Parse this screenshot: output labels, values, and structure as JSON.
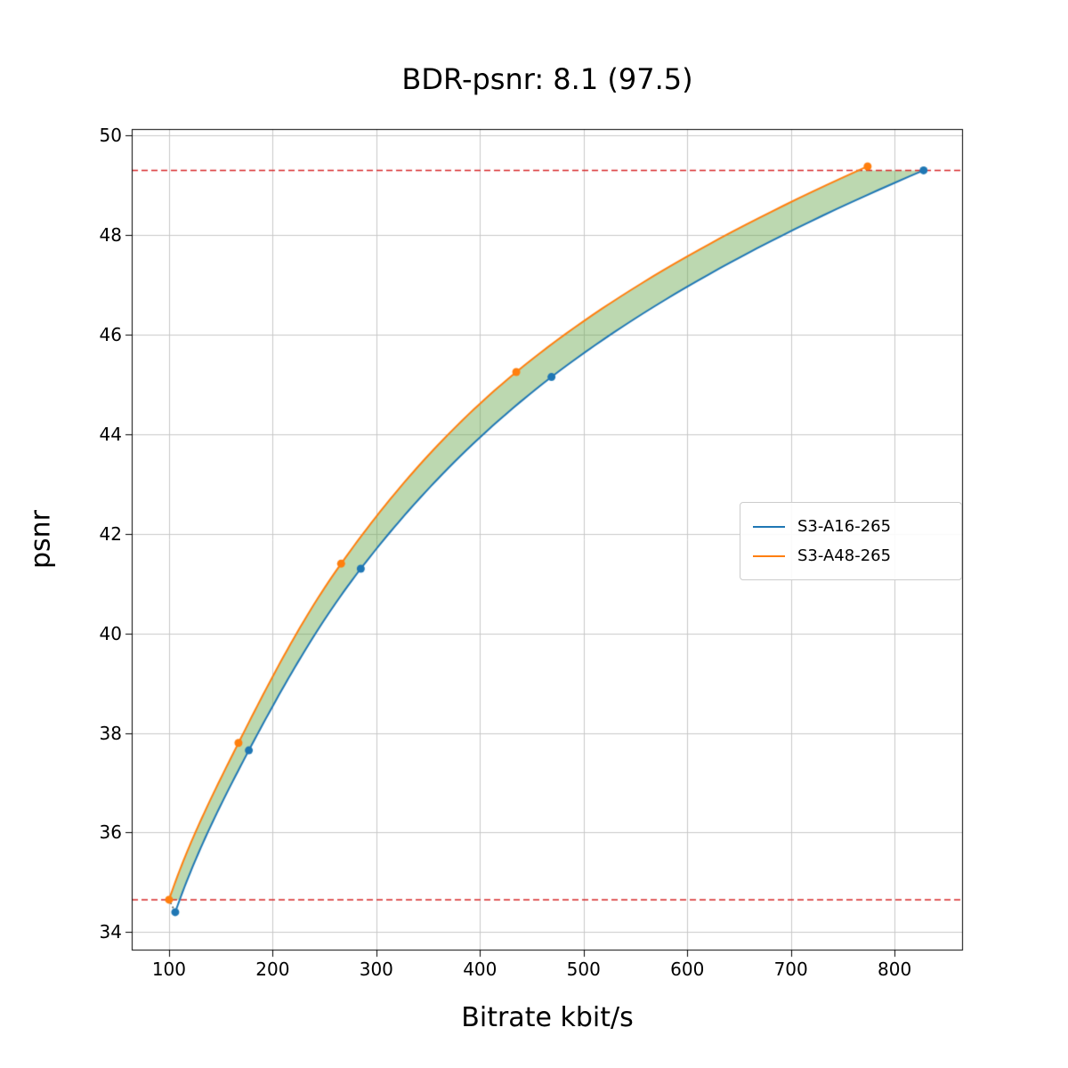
{
  "figure": {
    "background": "#ffffff"
  },
  "chart_data": {
    "type": "line",
    "title": "BDR-psnr: 8.1 (97.5)",
    "xlabel": "Bitrate kbit/s",
    "ylabel": "psnr",
    "xlim": [
      64,
      866
    ],
    "ylim": [
      33.63,
      50.13
    ],
    "xticks": [
      100,
      200,
      300,
      400,
      500,
      600,
      700,
      800
    ],
    "yticks": [
      34,
      36,
      38,
      40,
      42,
      44,
      46,
      48,
      50
    ],
    "grid": true,
    "grid_color": "#c8c8c8",
    "spine_color": "#000000",
    "legend_position": "center right",
    "series": [
      {
        "name": "S3-A16-265",
        "color": "#1f77b4",
        "marker": "circle",
        "x": [
          106,
          177,
          285,
          469,
          828
        ],
        "y": [
          34.4,
          37.65,
          41.3,
          45.15,
          49.3
        ]
      },
      {
        "name": "S3-A48-265",
        "color": "#ff7f0e",
        "marker": "circle",
        "x": [
          100,
          167,
          266,
          435,
          774
        ],
        "y": [
          34.65,
          37.8,
          41.4,
          45.25,
          49.38
        ]
      }
    ],
    "hlines": [
      {
        "y": 49.3,
        "color": "#d62728",
        "style": "dashed"
      },
      {
        "y": 34.65,
        "color": "#d62728",
        "style": "dashed"
      }
    ],
    "fill_between": {
      "series": [
        "S3-A48-265",
        "S3-A16-265"
      ],
      "color": "#6aa84f",
      "opacity": 0.45
    },
    "dotted_connector": {
      "x": [
        106,
        100
      ],
      "y": [
        34.4,
        34.65
      ],
      "color": "#555555",
      "style": "dotted"
    }
  }
}
